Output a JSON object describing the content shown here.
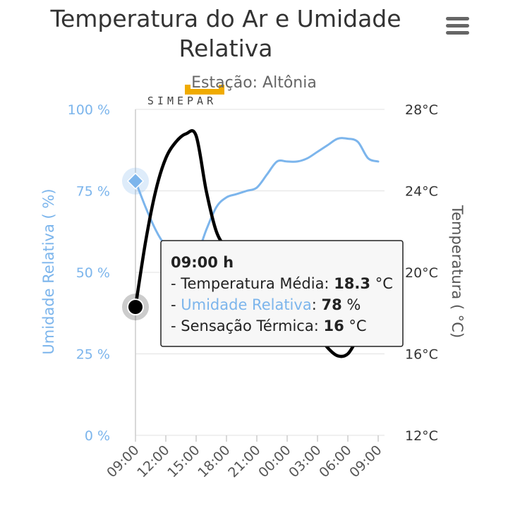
{
  "chart_data": {
    "type": "line",
    "title": "Temperatura do Ar e Umidade Relativa",
    "title_lines": [
      "Temperatura do Ar e Umidade",
      "Relativa"
    ],
    "subtitle": "Estação: Altônia",
    "logo_text": "SIMEPAR",
    "x_categories": [
      "09:00",
      "12:00",
      "15:00",
      "18:00",
      "21:00",
      "00:00",
      "03:00",
      "06:00",
      "09:00"
    ],
    "y_left": {
      "label": "Umidade Relativa ( %)",
      "ticks": [
        "0 %",
        "25 %",
        "50 %",
        "75 %",
        "100 %"
      ],
      "range": [
        0,
        100
      ]
    },
    "y_right": {
      "label": "Temperatura ( °C)",
      "ticks": [
        "12°C",
        "16°C",
        "20°C",
        "24°C",
        "28°C"
      ],
      "range": [
        12,
        28
      ]
    },
    "series": [
      {
        "name": "Umidade Relativa",
        "axis": "left",
        "color": "#7cb5ec",
        "x_hours": [
          0,
          1,
          2,
          3,
          4,
          5,
          6,
          7,
          8,
          9,
          10,
          11,
          12,
          13,
          14,
          15,
          16,
          17,
          18,
          19,
          20,
          21,
          22,
          23,
          24
        ],
        "values": [
          78,
          70,
          63,
          58,
          55,
          54,
          55,
          63,
          70,
          73,
          74,
          75,
          76,
          80,
          84,
          84,
          84,
          85,
          87,
          89,
          91,
          91,
          90,
          85,
          84
        ]
      },
      {
        "name": "Temperatura Média",
        "axis": "right",
        "color": "#000000",
        "x_hours": [
          0,
          1,
          2,
          3,
          4,
          5,
          6,
          7,
          8,
          9,
          10,
          11,
          12,
          13,
          14,
          15,
          16,
          17,
          18,
          19,
          20,
          21,
          22,
          23,
          24
        ],
        "values": [
          18.3,
          21.5,
          24.0,
          25.6,
          26.4,
          26.8,
          26.7,
          24.0,
          22.0,
          21.2,
          20.7,
          20.5,
          20.0,
          19.0,
          18.8,
          18.6,
          18.2,
          17.7,
          17.0,
          16.3,
          15.9,
          16.0,
          16.8,
          17.6,
          18.3
        ]
      }
    ],
    "tooltip": {
      "time": "09:00 h",
      "rows": [
        {
          "label": "- Temperatura Média: ",
          "value": "18.3",
          "unit": " °C",
          "color": "#222222"
        },
        {
          "label": "- Umidade Relativa",
          "colon": ": ",
          "value": "78",
          "unit": " %",
          "color": "#7cb5ec"
        },
        {
          "label": "- Sensação Térmica: ",
          "value": "16",
          "unit": " °C",
          "color": "#222222"
        }
      ]
    },
    "grid": true,
    "colors": {
      "humidity": "#7cb5ec",
      "temperature": "#000000",
      "logo": "#f0ab00"
    }
  },
  "menu": {
    "icon": "hamburger-menu-icon"
  }
}
